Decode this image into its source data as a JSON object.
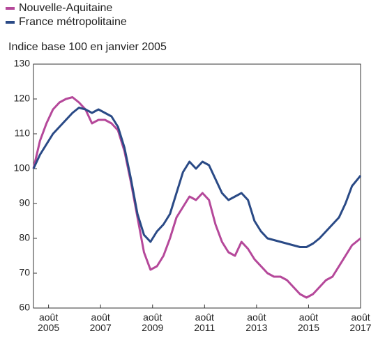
{
  "chart_data": {
    "type": "line",
    "subtitle": "Indice base 100 en janvier 2005",
    "x": [
      2005.0,
      2005.25,
      2005.5,
      2005.75,
      2006.0,
      2006.25,
      2006.5,
      2006.75,
      2007.0,
      2007.25,
      2007.5,
      2007.75,
      2008.0,
      2008.25,
      2008.5,
      2008.75,
      2009.0,
      2009.25,
      2009.5,
      2009.75,
      2010.0,
      2010.25,
      2010.5,
      2010.75,
      2011.0,
      2011.25,
      2011.5,
      2011.75,
      2012.0,
      2012.25,
      2012.5,
      2012.75,
      2013.0,
      2013.25,
      2013.5,
      2013.75,
      2014.0,
      2014.25,
      2014.5,
      2014.75,
      2015.0,
      2015.25,
      2015.5,
      2015.75,
      2016.0,
      2016.25,
      2016.5,
      2016.75,
      2017.0,
      2017.25,
      2017.58
    ],
    "series": [
      {
        "name": "Nouvelle-Aquitaine",
        "color": "#b5489a",
        "values": [
          100,
          108,
          113,
          117,
          119,
          120,
          120.5,
          119,
          117,
          113,
          114,
          114,
          113,
          111,
          105,
          96,
          86,
          76,
          71,
          72,
          75,
          80,
          86,
          89,
          92,
          91,
          93,
          91,
          84,
          79,
          76,
          75,
          79,
          77,
          74,
          72,
          70,
          69,
          69,
          68,
          66,
          64,
          63,
          64,
          66,
          68,
          69,
          72,
          75,
          78,
          80
        ]
      },
      {
        "name": "France métropolitaine",
        "color": "#2a4a86",
        "values": [
          100,
          104,
          107,
          110,
          112,
          114,
          116,
          117.5,
          117,
          116,
          117,
          116,
          115,
          112,
          106,
          97,
          87,
          81,
          79,
          82,
          84,
          87,
          93,
          99,
          102,
          100,
          102,
          101,
          97,
          93,
          91,
          92,
          93,
          91,
          85,
          82,
          80,
          79.5,
          79,
          78.5,
          78,
          77.5,
          77.5,
          78.5,
          80,
          82,
          84,
          86,
          90,
          95,
          98
        ]
      }
    ],
    "xlim": [
      2005.0,
      2017.58
    ],
    "xticks": [
      {
        "value": 2005.58,
        "label": "août\n2005"
      },
      {
        "value": 2007.58,
        "label": "août\n2007"
      },
      {
        "value": 2009.58,
        "label": "août\n2009"
      },
      {
        "value": 2011.58,
        "label": "août\n2011"
      },
      {
        "value": 2013.58,
        "label": "août\n2013"
      },
      {
        "value": 2015.58,
        "label": "août\n2015"
      },
      {
        "value": 2017.58,
        "label": "août\n2017"
      }
    ],
    "ylim": [
      60,
      130
    ],
    "yticks": [
      60,
      70,
      80,
      90,
      100,
      110,
      120,
      130
    ],
    "grid": false
  }
}
